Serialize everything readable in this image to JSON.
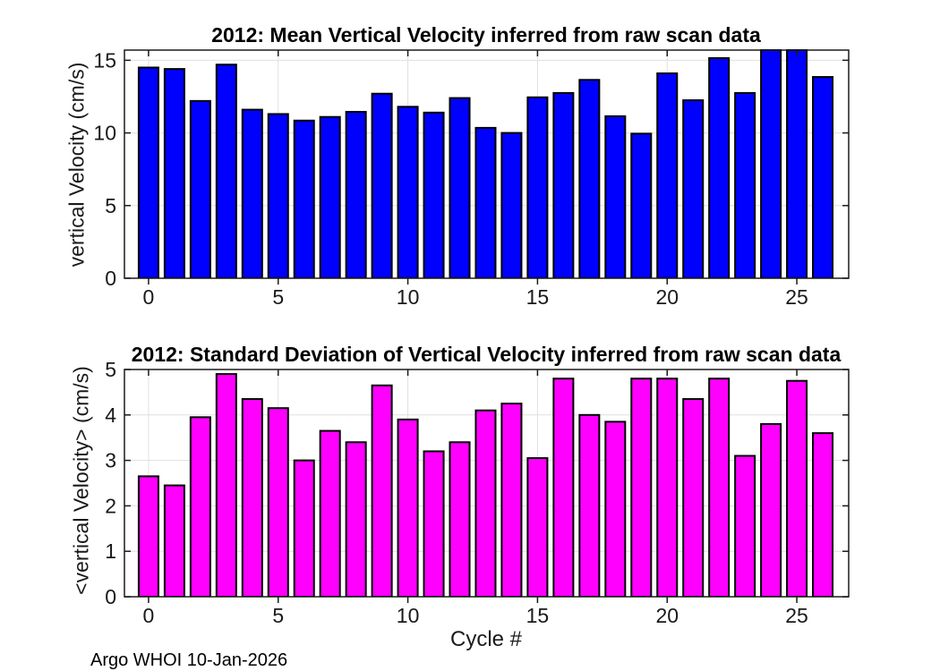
{
  "figure": {
    "footer": "Argo WHOI 10-Jan-2026",
    "background_color": "#ffffff",
    "axis_color": "#1a1a1a",
    "grid_color": "#e0e0e0"
  },
  "chart_data": [
    {
      "type": "bar",
      "title": "2012: Mean Vertical Velocity inferred from raw scan data",
      "ylabel": "vertical Velocity (cm/s)",
      "xlabel": "",
      "bar_color": "#0000ff",
      "bar_edge_color": "#000000",
      "grid": true,
      "legend": "none",
      "categories": [
        0,
        1,
        2,
        3,
        4,
        5,
        6,
        7,
        8,
        9,
        10,
        11,
        12,
        13,
        14,
        15,
        16,
        17,
        18,
        19,
        20,
        21,
        22,
        23,
        24,
        25,
        26
      ],
      "values": [
        14.5,
        14.4,
        12.2,
        14.7,
        11.6,
        11.3,
        10.85,
        11.1,
        11.45,
        12.7,
        11.8,
        11.4,
        12.4,
        10.35,
        10.0,
        12.45,
        12.75,
        13.65,
        11.15,
        9.95,
        14.1,
        12.25,
        15.15,
        12.75,
        15.7,
        15.7,
        13.85
      ],
      "xlim": [
        -0.93,
        27.0
      ],
      "ylim": [
        0,
        15.7
      ],
      "yticks": [
        0,
        5,
        10,
        15
      ],
      "xticks": [
        0,
        5,
        10,
        15,
        20,
        25
      ],
      "note": "bars at cycles 24 and 25 are clipped at the top axis limit"
    },
    {
      "type": "bar",
      "title": "2012: Standard Deviation of Vertical Velocity inferred from raw scan data",
      "ylabel": "<vertical Velocity> (cm/s)",
      "xlabel": "Cycle #",
      "bar_color": "#ff00ff",
      "bar_edge_color": "#000000",
      "grid": true,
      "legend": "none",
      "categories": [
        0,
        1,
        2,
        3,
        4,
        5,
        6,
        7,
        8,
        9,
        10,
        11,
        12,
        13,
        14,
        15,
        16,
        17,
        18,
        19,
        20,
        21,
        22,
        23,
        24,
        25,
        26
      ],
      "values": [
        2.65,
        2.45,
        3.95,
        4.9,
        4.35,
        4.15,
        3.0,
        3.65,
        3.4,
        4.65,
        3.9,
        3.2,
        3.4,
        4.1,
        4.25,
        3.05,
        4.8,
        4.0,
        3.85,
        4.8,
        4.8,
        4.35,
        4.8,
        3.1,
        3.8,
        4.75,
        3.6
      ],
      "xlim": [
        -0.93,
        27.0
      ],
      "ylim": [
        0,
        5
      ],
      "yticks": [
        0,
        1,
        2,
        3,
        4,
        5
      ],
      "xticks": [
        0,
        5,
        10,
        15,
        20,
        25
      ]
    }
  ]
}
